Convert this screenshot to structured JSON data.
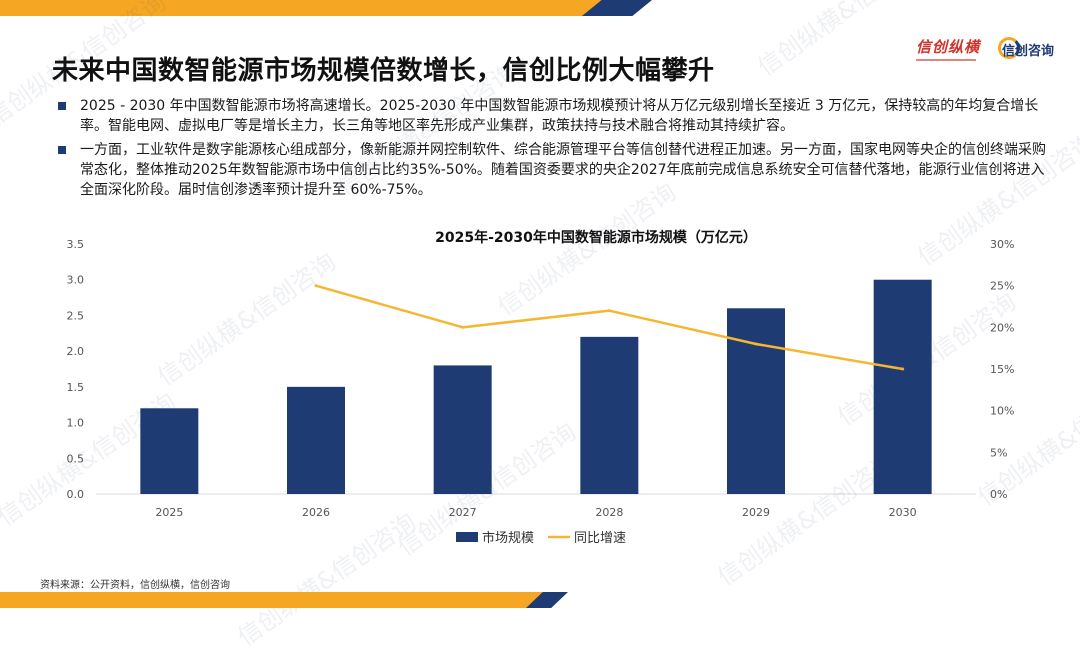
{
  "page": {
    "title": "未来中国数智能源市场规模倍数增长，信创比例大幅攀升",
    "logos": {
      "left_text": "信创纵横",
      "right_text": "信创咨询"
    },
    "bullets": [
      "2025 - 2030 年中国数智能源市场将高速增长。2025-2030 年中国数智能源市场规模预计将从万亿元级别增长至接近 3 万亿元，保持较高的年均复合增长率。智能电网、虚拟电厂等是增长主力，长三角等地区率先形成产业集群，政策扶持与技术融合将推动其持续扩容。",
      "一方面，工业软件是数字能源核心组成部分，像新能源并网控制软件、综合能源管理平台等信创替代进程正加速。另一方面，国家电网等央企的信创终端采购常态化，整体推动2025年数智能源市场中信创占比约35%-50%。随着国资委要求的央企2027年底前完成信息系统安全可信替代落地，能源行业信创将进入全面深化阶段。届时信创渗透率预计提升至 60%-75%。"
    ],
    "source": "资料来源：公开资料，信创纵横，信创咨询",
    "watermark": "信创纵横&信创咨询"
  },
  "colors": {
    "bar": "#1f3b73",
    "line": "#f5b731",
    "accent": "#f5a623",
    "navy": "#1f3b73"
  },
  "chart_data": {
    "type": "bar",
    "title": "2025年-2030年中国数智能源市场规模（万亿元）",
    "categories": [
      "2025",
      "2026",
      "2027",
      "2028",
      "2029",
      "2030"
    ],
    "y_ticks": [
      "0.0",
      "0.5",
      "1.0",
      "1.5",
      "2.0",
      "2.5",
      "3.0",
      "3.5"
    ],
    "y2_ticks": [
      "0%",
      "5%",
      "10%",
      "15%",
      "20%",
      "25%",
      "30%"
    ],
    "ylim": [
      0,
      3.5
    ],
    "y2lim": [
      0,
      30
    ],
    "grid": false,
    "legend_position": "bottom-center",
    "series": [
      {
        "name": "市场规模",
        "type": "bar",
        "axis": "left",
        "values": [
          1.2,
          1.5,
          1.8,
          2.2,
          2.6,
          3.0
        ]
      },
      {
        "name": "同比增速",
        "type": "line",
        "axis": "right",
        "values": [
          null,
          25,
          20,
          22,
          18,
          15
        ]
      }
    ]
  }
}
